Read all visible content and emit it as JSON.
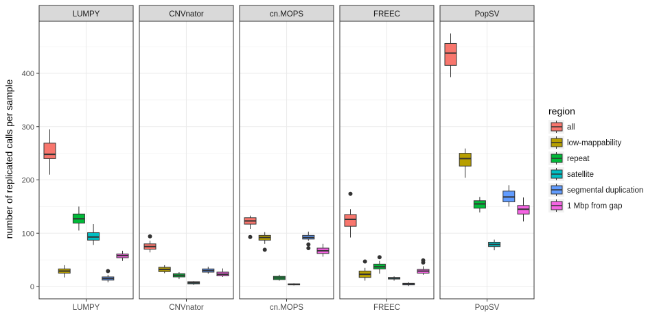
{
  "chart_data": {
    "type": "boxplot",
    "ylabel": "number of replicated calls per sample",
    "ylim": [
      -20,
      500
    ],
    "yticks": [
      0,
      100,
      200,
      300,
      400
    ],
    "grid": true,
    "facets": [
      "LUMPY",
      "CNVnator",
      "cn.MOPS",
      "FREEC",
      "PopSV"
    ],
    "legend": {
      "title": "region",
      "position": "right",
      "items": [
        {
          "label": "all",
          "color": "#F8766D"
        },
        {
          "label": "low-mappability",
          "color": "#B79F00"
        },
        {
          "label": "repeat",
          "color": "#00BA38"
        },
        {
          "label": "satellite",
          "color": "#00BFC4"
        },
        {
          "label": "segmental duplication",
          "color": "#619CFF"
        },
        {
          "label": "1 Mbp from gap",
          "color": "#F564E3"
        }
      ]
    },
    "panels": [
      {
        "name": "LUMPY",
        "boxes": [
          {
            "region": "all",
            "min": 210,
            "q1": 240,
            "median": 248,
            "q3": 269,
            "max": 295,
            "outliers": []
          },
          {
            "region": "low-mappability",
            "min": 17,
            "q1": 25,
            "median": 29,
            "q3": 33,
            "max": 40,
            "outliers": []
          },
          {
            "region": "repeat",
            "min": 105,
            "q1": 119,
            "median": 127,
            "q3": 136,
            "max": 150,
            "outliers": []
          },
          {
            "region": "satellite",
            "min": 78,
            "q1": 87,
            "median": 93,
            "q3": 101,
            "max": 117,
            "outliers": []
          },
          {
            "region": "segmental duplication",
            "min": 8,
            "q1": 12,
            "median": 15,
            "q3": 18,
            "max": 22,
            "outliers": [
              29
            ]
          },
          {
            "region": "1 Mbp from gap",
            "min": 48,
            "q1": 54,
            "median": 58,
            "q3": 61,
            "max": 67,
            "outliers": []
          }
        ]
      },
      {
        "name": "CNVnator",
        "boxes": [
          {
            "region": "all",
            "min": 64,
            "q1": 70,
            "median": 75,
            "q3": 80,
            "max": 86,
            "outliers": [
              94
            ]
          },
          {
            "region": "low-mappability",
            "min": 25,
            "q1": 28,
            "median": 32,
            "q3": 36,
            "max": 40,
            "outliers": []
          },
          {
            "region": "repeat",
            "min": 14,
            "q1": 18,
            "median": 21,
            "q3": 24,
            "max": 27,
            "outliers": []
          },
          {
            "region": "satellite",
            "min": 3,
            "q1": 5,
            "median": 7,
            "q3": 9,
            "max": 10,
            "outliers": []
          },
          {
            "region": "segmental duplication",
            "min": 24,
            "q1": 27,
            "median": 30,
            "q3": 33,
            "max": 37,
            "outliers": []
          },
          {
            "region": "1 Mbp from gap",
            "min": 18,
            "q1": 20,
            "median": 23,
            "q3": 27,
            "max": 34,
            "outliers": []
          }
        ]
      },
      {
        "name": "cn.MOPS",
        "boxes": [
          {
            "region": "all",
            "min": 108,
            "q1": 117,
            "median": 123,
            "q3": 129,
            "max": 133,
            "outliers": [
              93
            ]
          },
          {
            "region": "low-mappability",
            "min": 80,
            "q1": 87,
            "median": 92,
            "q3": 96,
            "max": 102,
            "outliers": [
              69
            ]
          },
          {
            "region": "repeat",
            "min": 11,
            "q1": 13,
            "median": 16,
            "q3": 19,
            "max": 22,
            "outliers": []
          },
          {
            "region": "satellite",
            "min": 2,
            "q1": 3,
            "median": 4,
            "q3": 5,
            "max": 6,
            "outliers": []
          },
          {
            "region": "segmental duplication",
            "min": 86,
            "q1": 89,
            "median": 92,
            "q3": 96,
            "max": 103,
            "outliers": [
              79,
              72
            ]
          },
          {
            "region": "1 Mbp from gap",
            "min": 56,
            "q1": 62,
            "median": 67,
            "q3": 72,
            "max": 80,
            "outliers": []
          }
        ]
      },
      {
        "name": "FREEC",
        "boxes": [
          {
            "region": "all",
            "min": 92,
            "q1": 113,
            "median": 126,
            "q3": 135,
            "max": 145,
            "outliers": [
              174
            ]
          },
          {
            "region": "low-mappability",
            "min": 11,
            "q1": 17,
            "median": 23,
            "q3": 29,
            "max": 35,
            "outliers": [
              47
            ]
          },
          {
            "region": "repeat",
            "min": 24,
            "q1": 33,
            "median": 37,
            "q3": 42,
            "max": 48,
            "outliers": [
              55
            ]
          },
          {
            "region": "satellite",
            "min": 11,
            "q1": 14,
            "median": 16,
            "q3": 17,
            "max": 19,
            "outliers": []
          },
          {
            "region": "segmental duplication",
            "min": 1,
            "q1": 3,
            "median": 5,
            "q3": 6,
            "max": 8,
            "outliers": []
          },
          {
            "region": "1 Mbp from gap",
            "min": 22,
            "q1": 25,
            "median": 29,
            "q3": 32,
            "max": 38,
            "outliers": [
              45,
              49
            ]
          }
        ]
      },
      {
        "name": "PopSV",
        "boxes": [
          {
            "region": "all",
            "min": 393,
            "q1": 415,
            "median": 438,
            "q3": 456,
            "max": 475,
            "outliers": []
          },
          {
            "region": "low-mappability",
            "min": 204,
            "q1": 226,
            "median": 240,
            "q3": 250,
            "max": 259,
            "outliers": []
          },
          {
            "region": "repeat",
            "min": 139,
            "q1": 147,
            "median": 155,
            "q3": 161,
            "max": 168,
            "outliers": []
          },
          {
            "region": "satellite",
            "min": 68,
            "q1": 75,
            "median": 79,
            "q3": 83,
            "max": 88,
            "outliers": []
          },
          {
            "region": "segmental duplication",
            "min": 150,
            "q1": 159,
            "median": 168,
            "q3": 179,
            "max": 190,
            "outliers": []
          },
          {
            "region": "1 Mbp from gap",
            "min": 122,
            "q1": 136,
            "median": 145,
            "q3": 152,
            "max": 167,
            "outliers": []
          }
        ]
      }
    ]
  }
}
